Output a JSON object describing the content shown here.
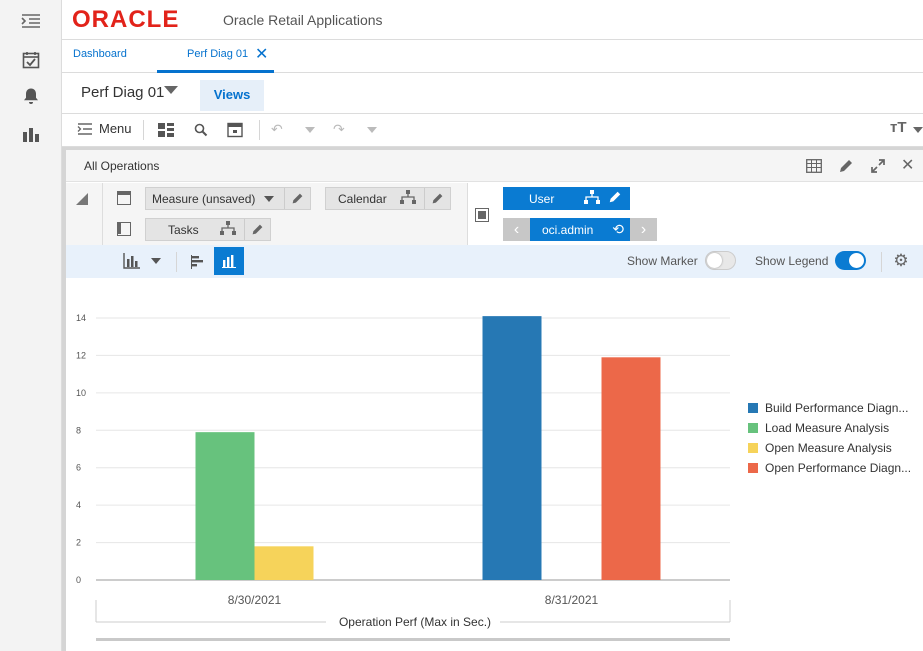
{
  "app": {
    "brand": "ORACLE",
    "title": "Oracle Retail Applications"
  },
  "tabs": [
    {
      "label": "Dashboard",
      "active": false
    },
    {
      "label": "Perf Diag 01",
      "active": true
    }
  ],
  "workspace": {
    "name": "Perf Diag 01",
    "views_label": "Views"
  },
  "toolbar": {
    "menu_label": "Menu"
  },
  "panel": {
    "title": "All Operations"
  },
  "pivot": {
    "measure_label": "Measure (unsaved)",
    "calendar_label": "Calendar",
    "tasks_label": "Tasks",
    "user_label": "User",
    "user_value": "oci.admin"
  },
  "chart_toolbar": {
    "show_marker_label": "Show Marker",
    "show_marker_on": false,
    "show_legend_label": "Show Legend",
    "show_legend_on": true
  },
  "colors": {
    "blue": "#2678b4",
    "green": "#67c27d",
    "yellow": "#f6d35a",
    "orange": "#ec6849",
    "accent": "#0a7bd2",
    "brand_red": "#e2231a"
  },
  "chart_data": {
    "type": "bar",
    "categories": [
      "8/30/2021",
      "8/31/2021"
    ],
    "series": [
      {
        "name": "Build Performance Diagn...",
        "values": [
          0,
          14.1
        ],
        "color": "#2678b4"
      },
      {
        "name": "Load Measure Analysis",
        "values": [
          7.9,
          0
        ],
        "color": "#67c27d"
      },
      {
        "name": "Open Measure Analysis",
        "values": [
          1.8,
          0
        ],
        "color": "#f6d35a"
      },
      {
        "name": "Open Performance Diagn...",
        "values": [
          0,
          11.9
        ],
        "color": "#ec6849"
      }
    ],
    "yticks": [
      "0",
      "2",
      "4",
      "6",
      "8",
      "10",
      "12",
      "14"
    ],
    "ylim": [
      0,
      14
    ],
    "xlabel": "Operation Perf (Max in Sec.)",
    "ylabel": "",
    "grid": true,
    "legend": "right"
  }
}
